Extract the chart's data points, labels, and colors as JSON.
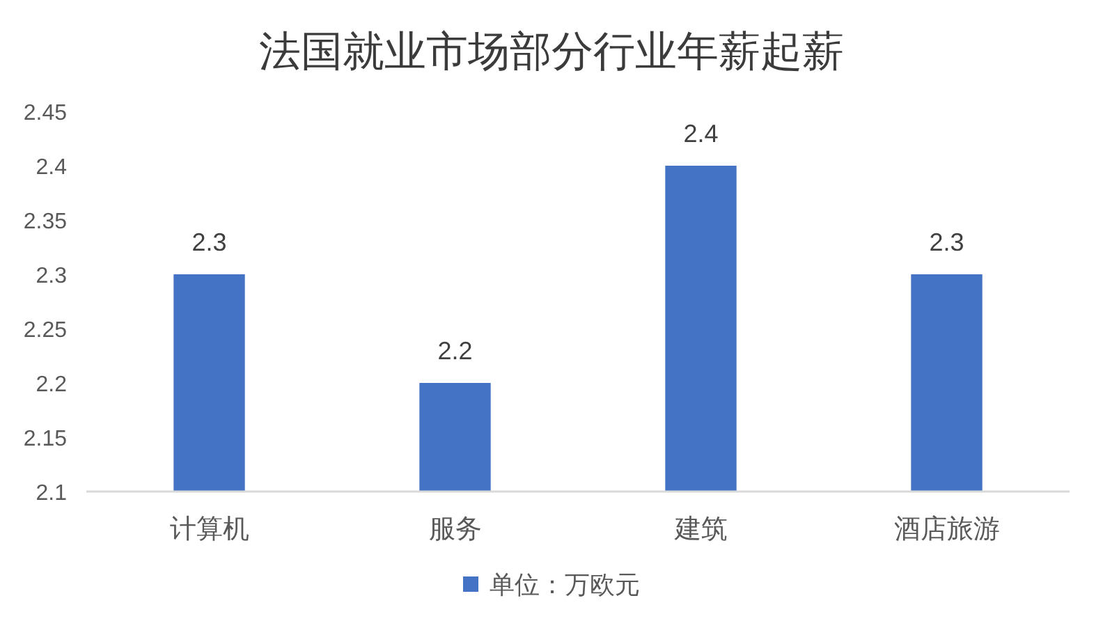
{
  "chart_data": {
    "type": "bar",
    "title": "法国就业市场部分行业年薪起薪",
    "categories": [
      "计算机",
      "服务",
      "建筑",
      "酒店旅游"
    ],
    "series": [
      {
        "name": "单位：万欧元",
        "color": "#4472c4",
        "values": [
          2.3,
          2.2,
          2.4,
          2.3
        ]
      }
    ],
    "ylim": [
      2.1,
      2.45
    ],
    "yticks": [
      2.1,
      2.15,
      2.2,
      2.25,
      2.3,
      2.35,
      2.4,
      2.45
    ],
    "legend": "bottom",
    "data_labels": true
  }
}
